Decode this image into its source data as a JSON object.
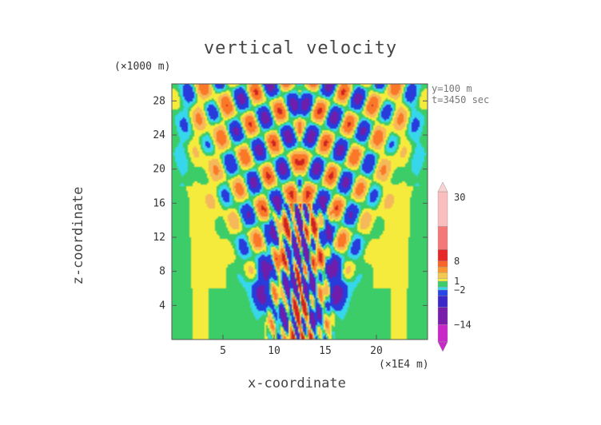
{
  "chart_data": {
    "type": "heatmap",
    "title": "vertical velocity",
    "xlabel": "x-coordinate",
    "ylabel": "z-coordinate",
    "x_unit": "(×1E4 m)",
    "z_unit": "(×1000 m)",
    "xlim": [
      0,
      25
    ],
    "ylim": [
      0,
      30
    ],
    "x_ticks": [
      5,
      10,
      15,
      20
    ],
    "y_ticks": [
      4,
      8,
      12,
      16,
      20,
      24,
      28
    ],
    "annotations": [
      "y=100  m",
      "t=3450  sec"
    ],
    "colorbar": {
      "labels": [
        "30",
        "8",
        "1",
        "−2",
        "−14"
      ],
      "label_values": [
        30,
        8,
        1,
        -2,
        -14
      ],
      "min": -20,
      "max": 32
    },
    "description_fields": {
      "source_center_x": 12.5,
      "source_top_z": 16
    }
  }
}
